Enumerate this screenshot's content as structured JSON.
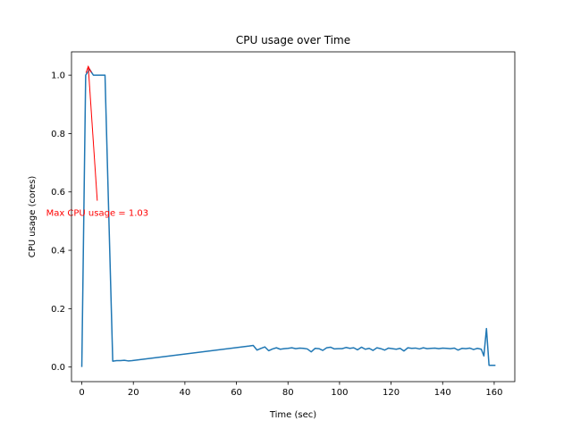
{
  "chart_data": {
    "type": "line",
    "title": "CPU usage over Time",
    "xlabel": "Time (sec)",
    "ylabel": "CPU usage (cores)",
    "xlim": [
      -4,
      168
    ],
    "ylim": [
      -0.05,
      1.08
    ],
    "xticks": [
      0,
      20,
      40,
      60,
      80,
      100,
      120,
      140,
      160
    ],
    "yticks": [
      0.0,
      0.2,
      0.4,
      0.6,
      0.8,
      1.0
    ],
    "xtick_labels": [
      "0",
      "20",
      "40",
      "60",
      "80",
      "100",
      "120",
      "140",
      "160"
    ],
    "ytick_labels": [
      "0.0",
      "0.2",
      "0.4",
      "0.6",
      "0.8",
      "1.0"
    ],
    "grid": false,
    "series": [
      {
        "color": "#1f77b4",
        "x": [
          0,
          1.5,
          3,
          4.5,
          6,
          7.5,
          9,
          10.5,
          12,
          13.5,
          15,
          16.5,
          18,
          19.5,
          65,
          66.5,
          68,
          69.5,
          71,
          72.5,
          74,
          75.5,
          77,
          78.5,
          80,
          81.5,
          83,
          84.5,
          86,
          87.5,
          89,
          90.5,
          92,
          93.5,
          95,
          96.5,
          98,
          99.5,
          101,
          102.5,
          104,
          105.5,
          107,
          108.5,
          110,
          111.5,
          113,
          114.5,
          116,
          117.5,
          119,
          120.5,
          122,
          123.5,
          125,
          126.5,
          128,
          129.5,
          131,
          132.5,
          134,
          135.5,
          137,
          138.5,
          140,
          141.5,
          143,
          144.5,
          146,
          147.5,
          149,
          150.5,
          152,
          153.5,
          155,
          156,
          157,
          158,
          159,
          160.5
        ],
        "y": [
          0.0,
          1.0,
          1.02,
          1.0,
          1.0,
          1.0,
          1.0,
          0.51,
          0.02,
          0.022,
          0.022,
          0.023,
          0.021,
          0.022,
          0.072,
          0.074,
          0.058,
          0.064,
          0.069,
          0.056,
          0.062,
          0.066,
          0.061,
          0.063,
          0.064,
          0.066,
          0.063,
          0.065,
          0.064,
          0.062,
          0.052,
          0.064,
          0.063,
          0.057,
          0.066,
          0.068,
          0.062,
          0.063,
          0.063,
          0.067,
          0.064,
          0.066,
          0.059,
          0.068,
          0.061,
          0.064,
          0.057,
          0.066,
          0.063,
          0.058,
          0.065,
          0.063,
          0.061,
          0.064,
          0.055,
          0.066,
          0.064,
          0.065,
          0.062,
          0.066,
          0.063,
          0.064,
          0.065,
          0.063,
          0.065,
          0.064,
          0.063,
          0.065,
          0.058,
          0.064,
          0.063,
          0.065,
          0.06,
          0.064,
          0.061,
          0.038,
          0.132,
          0.006,
          0.006,
          0.006
        ]
      }
    ],
    "annotation": {
      "text": "Max CPU usage = 1.03",
      "xy": [
        2.5,
        1.03
      ],
      "xytext": [
        6,
        0.57
      ],
      "color": "#ff0000"
    }
  }
}
